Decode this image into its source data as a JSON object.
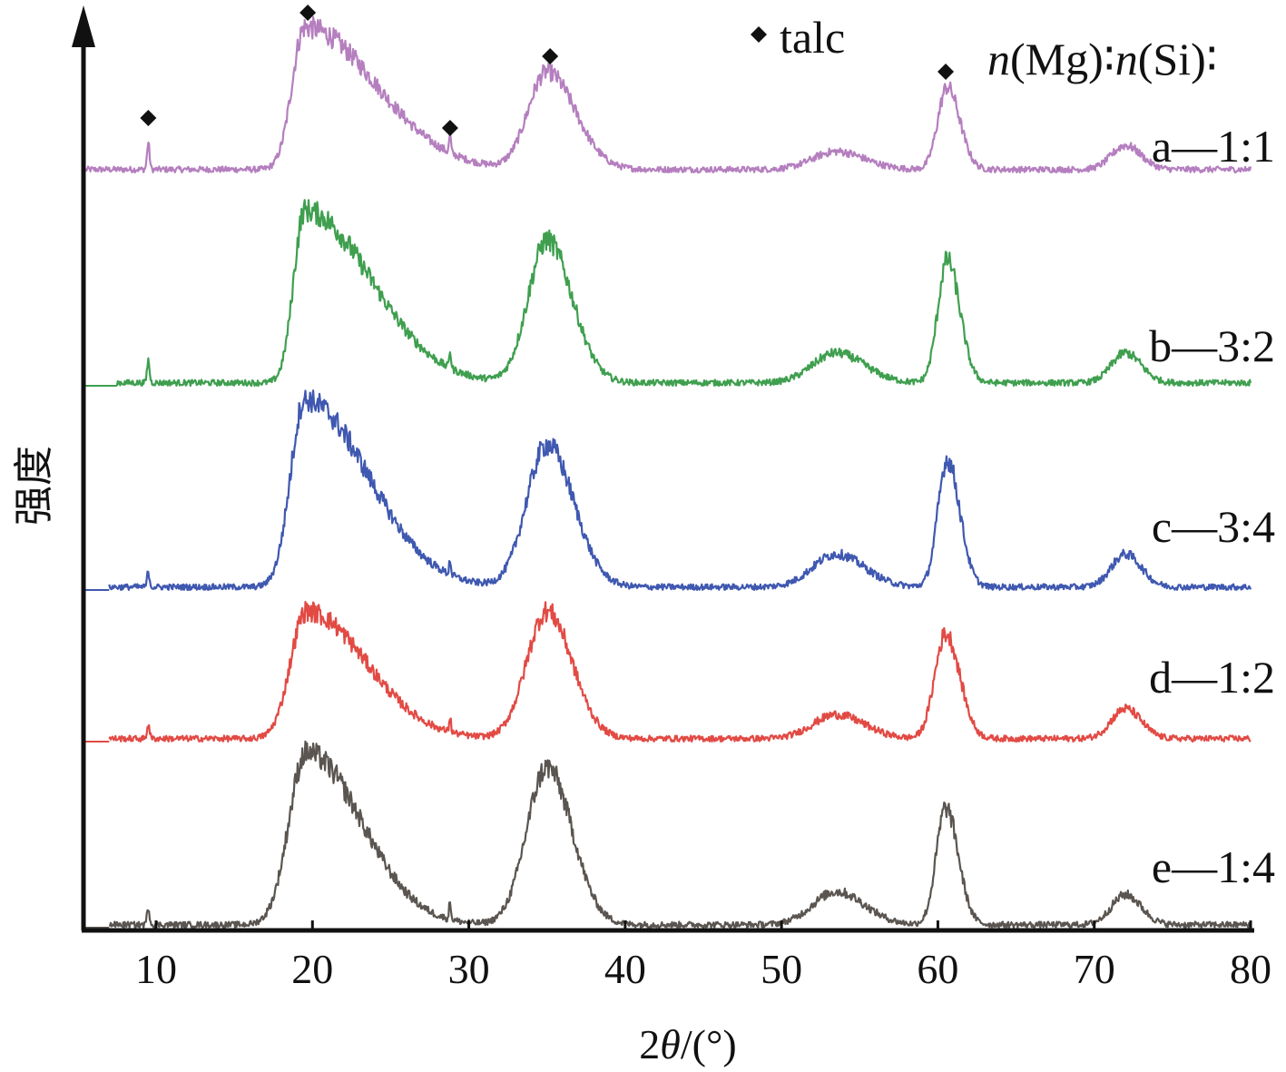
{
  "chart_data": {
    "type": "line",
    "xlabel_prefix": "2",
    "xlabel_theta": "θ",
    "xlabel_suffix": "/(°)",
    "ylabel": "强度",
    "xlim": [
      5,
      80
    ],
    "x_ticks": [
      10,
      20,
      30,
      40,
      50,
      60,
      70,
      80
    ],
    "legend": {
      "marker_label": "talc",
      "ratio_header_prefix": "n",
      "ratio_header_1": "(Mg)∶",
      "ratio_header_2": "n",
      "ratio_header_3": "(Si)∶"
    },
    "talc_marker_positions": [
      9.5,
      19.7,
      28.8,
      35.2,
      60.5
    ],
    "series": [
      {
        "label": "a—1:1",
        "color": "#b57fbf",
        "start": 5.5,
        "amp": 1.0,
        "peaks": [
          {
            "x": 19.5,
            "h": 0.95,
            "wl": 0.8,
            "wr": 4.5
          },
          {
            "x": 35.0,
            "h": 0.65,
            "wl": 1.2,
            "wr": 1.8
          },
          {
            "x": 53.5,
            "h": 0.12,
            "wl": 1.5,
            "wr": 1.8
          },
          {
            "x": 60.6,
            "h": 0.55,
            "wl": 0.6,
            "wr": 0.8
          },
          {
            "x": 72.0,
            "h": 0.16,
            "wl": 0.9,
            "wr": 1.0
          },
          {
            "x": 9.5,
            "h": 0.18,
            "wl": 0.08,
            "wr": 0.08
          },
          {
            "x": 28.8,
            "h": 0.12,
            "wl": 0.06,
            "wr": 0.06
          }
        ]
      },
      {
        "label": "b—3:2",
        "color": "#3f9f4f",
        "start": 7.5,
        "amp": 1.0,
        "peaks": [
          {
            "x": 19.5,
            "h": 1.15,
            "wl": 0.7,
            "wr": 4.2
          },
          {
            "x": 35.0,
            "h": 0.95,
            "wl": 1.2,
            "wr": 1.6
          },
          {
            "x": 53.5,
            "h": 0.2,
            "wl": 1.5,
            "wr": 1.8
          },
          {
            "x": 60.6,
            "h": 0.82,
            "wl": 0.6,
            "wr": 0.8
          },
          {
            "x": 72.0,
            "h": 0.2,
            "wl": 0.9,
            "wr": 1.0
          },
          {
            "x": 9.5,
            "h": 0.15,
            "wl": 0.08,
            "wr": 0.08
          },
          {
            "x": 28.8,
            "h": 0.12,
            "wl": 0.06,
            "wr": 0.06
          }
        ]
      },
      {
        "label": "c—3:4",
        "color": "#3f58b0",
        "start": 7.0,
        "amp": 1.0,
        "peaks": [
          {
            "x": 19.5,
            "h": 1.25,
            "wl": 0.9,
            "wr": 4.0
          },
          {
            "x": 35.0,
            "h": 0.95,
            "wl": 1.3,
            "wr": 1.7
          },
          {
            "x": 53.5,
            "h": 0.22,
            "wl": 1.5,
            "wr": 1.8
          },
          {
            "x": 60.6,
            "h": 0.85,
            "wl": 0.6,
            "wr": 0.8
          },
          {
            "x": 72.0,
            "h": 0.22,
            "wl": 0.9,
            "wr": 1.0
          },
          {
            "x": 9.5,
            "h": 0.1,
            "wl": 0.08,
            "wr": 0.08
          },
          {
            "x": 28.8,
            "h": 0.1,
            "wl": 0.06,
            "wr": 0.06
          }
        ]
      },
      {
        "label": "d—1:2",
        "color": "#e24a44",
        "start": 7.0,
        "amp": 1.0,
        "peaks": [
          {
            "x": 19.6,
            "h": 0.85,
            "wl": 1.0,
            "wr": 3.8
          },
          {
            "x": 35.0,
            "h": 0.85,
            "wl": 1.3,
            "wr": 1.6
          },
          {
            "x": 53.5,
            "h": 0.16,
            "wl": 1.5,
            "wr": 1.8
          },
          {
            "x": 60.5,
            "h": 0.7,
            "wl": 0.7,
            "wr": 0.9
          },
          {
            "x": 72.0,
            "h": 0.2,
            "wl": 0.9,
            "wr": 1.0
          },
          {
            "x": 9.5,
            "h": 0.1,
            "wl": 0.08,
            "wr": 0.08
          },
          {
            "x": 28.8,
            "h": 0.1,
            "wl": 0.06,
            "wr": 0.06
          }
        ]
      },
      {
        "label": "e—1:4",
        "color": "#5a5550",
        "start": 7.0,
        "amp": 1.0,
        "peaks": [
          {
            "x": 19.6,
            "h": 1.15,
            "wl": 1.1,
            "wr": 3.5
          },
          {
            "x": 35.0,
            "h": 1.05,
            "wl": 1.3,
            "wr": 1.6
          },
          {
            "x": 53.5,
            "h": 0.22,
            "wl": 1.5,
            "wr": 1.8
          },
          {
            "x": 60.5,
            "h": 0.78,
            "wl": 0.6,
            "wr": 0.8
          },
          {
            "x": 72.0,
            "h": 0.2,
            "wl": 0.9,
            "wr": 1.0
          },
          {
            "x": 9.5,
            "h": 0.12,
            "wl": 0.08,
            "wr": 0.08
          },
          {
            "x": 28.8,
            "h": 0.12,
            "wl": 0.06,
            "wr": 0.06
          }
        ]
      }
    ]
  }
}
